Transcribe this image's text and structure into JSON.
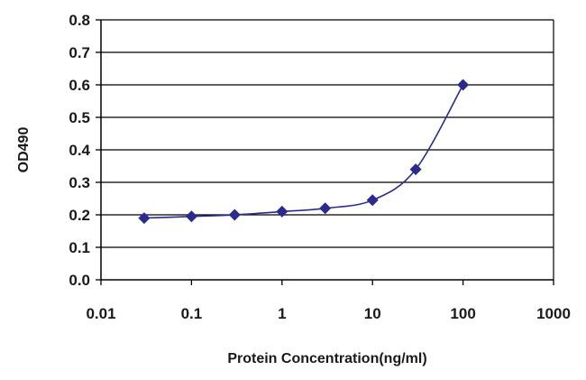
{
  "chart_data": {
    "type": "scatter",
    "title": "",
    "xlabel": "Protein Concentration(ng/ml)",
    "ylabel": "OD490",
    "x_scale": "log",
    "xlim": [
      0.01,
      1000
    ],
    "ylim": [
      0,
      0.8
    ],
    "x_ticks": [
      "0.01",
      "0.1",
      "1",
      "10",
      "100",
      "1000"
    ],
    "y_ticks": [
      "0.0",
      "0.1",
      "0.2",
      "0.3",
      "0.4",
      "0.5",
      "0.6",
      "0.7",
      "0.8"
    ],
    "grid": "horizontal",
    "legend": "none",
    "series": [
      {
        "x": [
          0.03,
          0.1,
          0.3,
          1,
          3,
          10,
          30,
          100
        ],
        "y": [
          0.19,
          0.195,
          0.2,
          0.21,
          0.22,
          0.245,
          0.34,
          0.6
        ],
        "color": "#2b2b8f",
        "marker": "diamond",
        "fit_line": true
      }
    ]
  }
}
